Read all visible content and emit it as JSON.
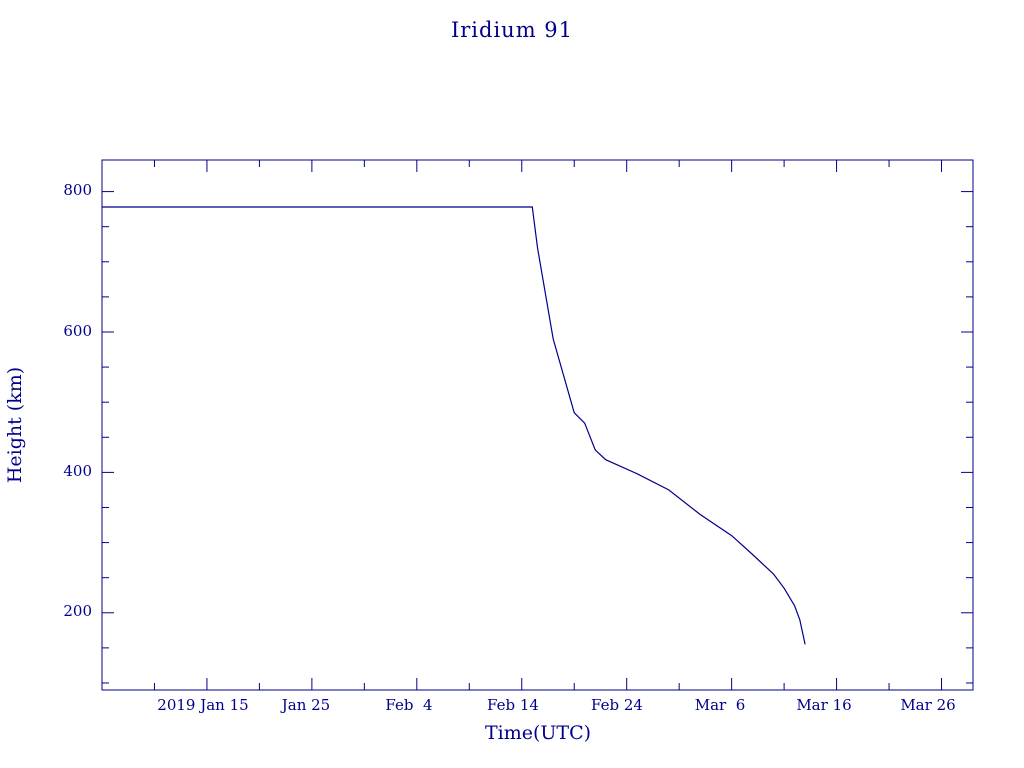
{
  "chart_data": {
    "type": "line",
    "title": "Iridium 91",
    "xlabel": "Time(UTC)",
    "ylabel": "Height (km)",
    "color": "#00008b",
    "x_tick_labels": [
      "2019 Jan 15",
      "Jan 25",
      "Feb  4",
      "Feb 14",
      "Feb 24",
      "Mar  6",
      "Mar 16",
      "Mar 26"
    ],
    "y_tick_labels": [
      "200",
      "400",
      "600",
      "800"
    ],
    "xlim": [
      "2019-01-05",
      "2019-03-29"
    ],
    "ylim": [
      90,
      845
    ],
    "series": [
      {
        "x": [
          "2019-01-05",
          "2019-02-15",
          "2019-02-15T12:00",
          "2019-02-17",
          "2019-02-19",
          "2019-02-20",
          "2019-02-21",
          "2019-02-22",
          "2019-02-25",
          "2019-02-28",
          "2019-03-03",
          "2019-03-06",
          "2019-03-08",
          "2019-03-10",
          "2019-03-11",
          "2019-03-12",
          "2019-03-12T12:00",
          "2019-03-13"
        ],
        "y": [
          778,
          778,
          720,
          590,
          485,
          470,
          432,
          418,
          398,
          375,
          340,
          310,
          283,
          255,
          235,
          210,
          190,
          155
        ]
      }
    ]
  }
}
